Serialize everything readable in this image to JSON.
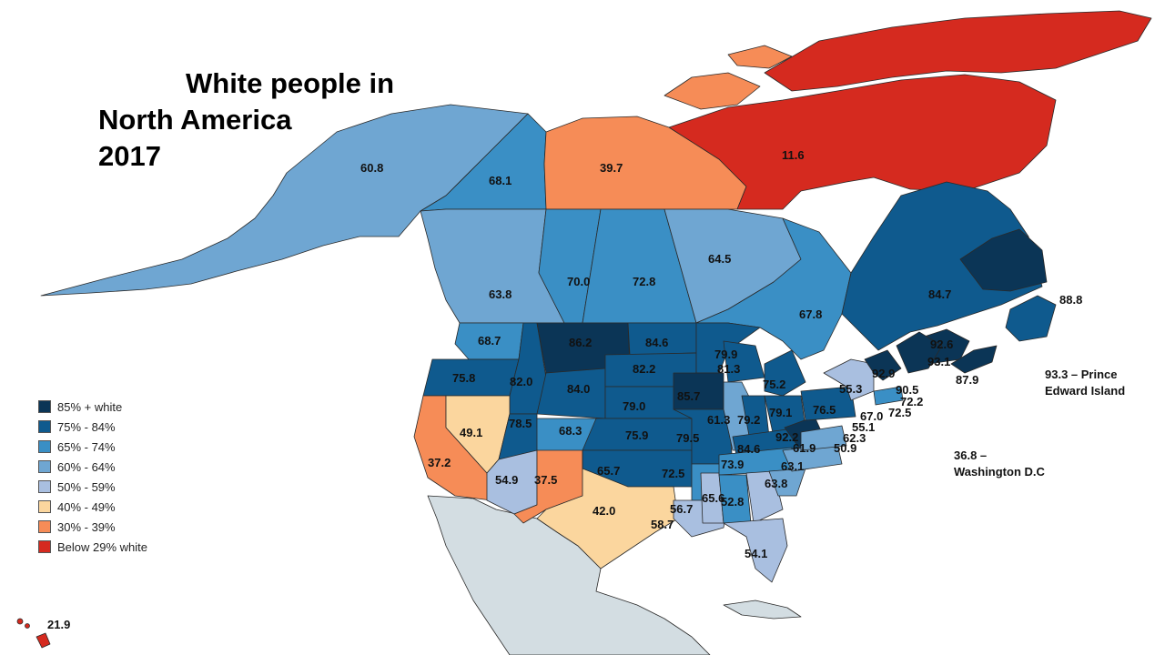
{
  "title": {
    "line1": "White people in",
    "line2": "North America",
    "line3": "2017"
  },
  "colors": {
    "c85": "#0b3556",
    "c75": "#0f5a8e",
    "c65": "#3a8fc5",
    "c60": "#6fa6d2",
    "c50": "#a9bfe0",
    "c40": "#fbd69e",
    "c30": "#f68c57",
    "c0": "#d52a1f",
    "mexico": "#d3dde2",
    "outline": "#2a2a2a"
  },
  "legend": [
    {
      "label": "85% + white",
      "color": "#0b3556"
    },
    {
      "label": "75% - 84%",
      "color": "#0f5a8e"
    },
    {
      "label": "65% - 74%",
      "color": "#3a8fc5"
    },
    {
      "label": "60% - 64%",
      "color": "#6fa6d2"
    },
    {
      "label": "50% - 59%",
      "color": "#a9bfe0"
    },
    {
      "label": "40% - 49%",
      "color": "#fbd69e"
    },
    {
      "label": "30% - 39%",
      "color": "#f68c57"
    },
    {
      "label": "Below 29% white",
      "color": "#d52a1f"
    }
  ],
  "notes": {
    "pei_value": "93.3 – Prince",
    "pei_name": "Edward Island",
    "dc_value": "36.8 –",
    "dc_name": "Washington D.C"
  },
  "values": {
    "alaska": "60.8",
    "yukon": "68.1",
    "nwt": "39.7",
    "nunavut": "11.6",
    "bc": "63.8",
    "alberta": "70.0",
    "saskatchewan": "72.8",
    "manitoba": "64.5",
    "ontario": "67.8",
    "quebec": "84.7",
    "newfoundland": "88.8",
    "nova_scotia": "87.9",
    "new_brunswick": "92.6",
    "maine": "93.1",
    "vermont_nh": "92.9",
    "massachusetts": "72.2",
    "ri_ct": "72.5",
    "ma_coast": "90.5",
    "new_york": "55.3",
    "nj": "67.0",
    "delaware": "62.3",
    "maryland": "55.1",
    "virginia": "50.9",
    "dc_area": "61.9",
    "washington": "68.7",
    "oregon": "75.8",
    "idaho": "82.0",
    "montana": "86.2",
    "north_dakota": "84.6",
    "south_dakota": "82.2",
    "minnesota": "79.9",
    "wisconsin": "81.3",
    "michigan": "75.2",
    "wyoming": "84.0",
    "nebraska": "79.0",
    "iowa": "85.7",
    "illinois": "61.3",
    "indiana": "79.2",
    "ohio": "79.1",
    "pennsylvania": "76.5",
    "west_virginia": "92.2",
    "kentucky": "84.6",
    "tennessee": "73.9",
    "north_carolina": "63.1",
    "south_carolina": "63.8",
    "nevada": "49.1",
    "utah": "78.5",
    "colorado": "68.3",
    "kansas": "75.9",
    "missouri": "79.5",
    "california": "37.2",
    "arizona": "54.9",
    "new_mexico": "37.5",
    "texas": "42.0",
    "oklahoma": "65.7",
    "arkansas": "72.5",
    "louisiana": "58.7",
    "mississippi": "56.7",
    "alabama": "65.6",
    "georgia": "52.8",
    "florida": "54.1",
    "hawaii": "21.9"
  }
}
